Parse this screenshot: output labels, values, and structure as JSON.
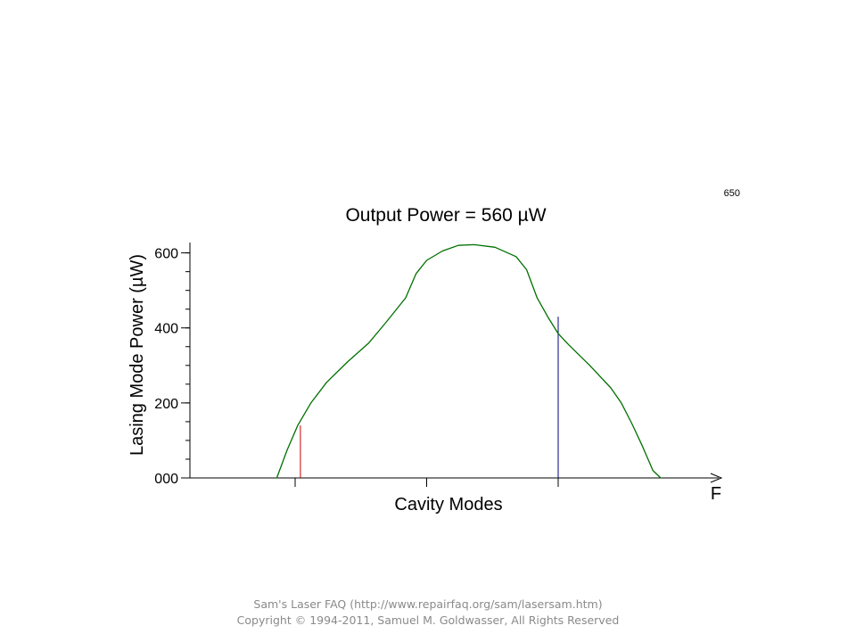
{
  "chart_data": {
    "type": "line",
    "title": "Output Power = 560 µW",
    "frame_label": "650",
    "xlabel": "Cavity Modes",
    "ylabel": "Lasing Mode Power (µW)",
    "x_axis_end_label": "F",
    "ylim": [
      0,
      630
    ],
    "xlim": [
      0,
      100
    ],
    "y_ticks": [
      {
        "value": 0,
        "label": "000"
      },
      {
        "value": 200,
        "label": "200"
      },
      {
        "value": 400,
        "label": "400"
      },
      {
        "value": 600,
        "label": "600"
      }
    ],
    "y_minor_step": 50,
    "x_ticks": [
      20,
      45,
      70
    ],
    "grid": false,
    "series": [
      {
        "color": "#007000",
        "x": [
          16.5,
          18.5,
          20.5,
          23,
          26,
          30,
          34,
          37,
          41,
          43,
          45,
          48,
          51,
          54,
          58,
          62,
          64,
          66,
          68,
          70,
          72,
          76,
          80,
          82,
          84,
          86,
          88,
          89.5
        ],
        "y": [
          0,
          75,
          140,
          200,
          255,
          310,
          360,
          410,
          480,
          545,
          580,
          605,
          620,
          622,
          615,
          590,
          555,
          480,
          430,
          385,
          355,
          300,
          240,
          200,
          145,
          85,
          20,
          0
        ]
      }
    ],
    "mode_markers": [
      {
        "x": 21,
        "y": 140,
        "color": "#cc0000"
      },
      {
        "x": 70,
        "y": 430,
        "color": "#000080"
      }
    ]
  },
  "footer": {
    "line1": "Sam's Laser FAQ (http://www.repairfaq.org/sam/lasersam.htm)",
    "line2": "Copyright © 1994-2011, Samuel M. Goldwasser, All Rights Reserved"
  }
}
